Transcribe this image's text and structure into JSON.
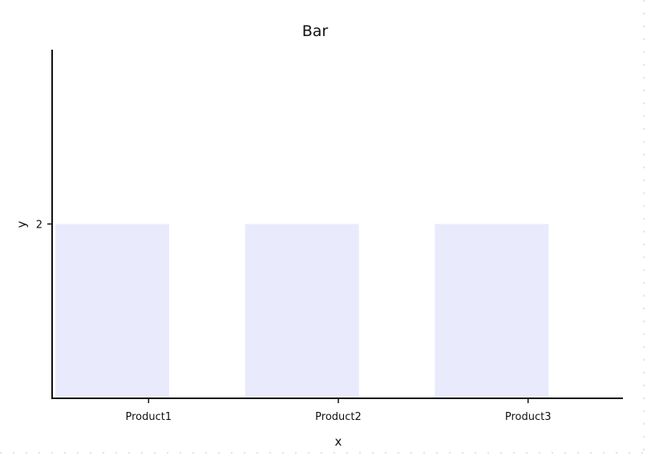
{
  "chart_data": {
    "type": "bar",
    "title": "Bar",
    "xlabel": "x",
    "ylabel": "y",
    "categories": [
      "Product1",
      "Product2",
      "Product3"
    ],
    "values": [
      2,
      2,
      2
    ],
    "ylim": [
      0,
      4
    ],
    "yticks": [
      "2"
    ],
    "grid": false,
    "bar_color": "#e9ebfc",
    "axis_color": "#111111"
  }
}
